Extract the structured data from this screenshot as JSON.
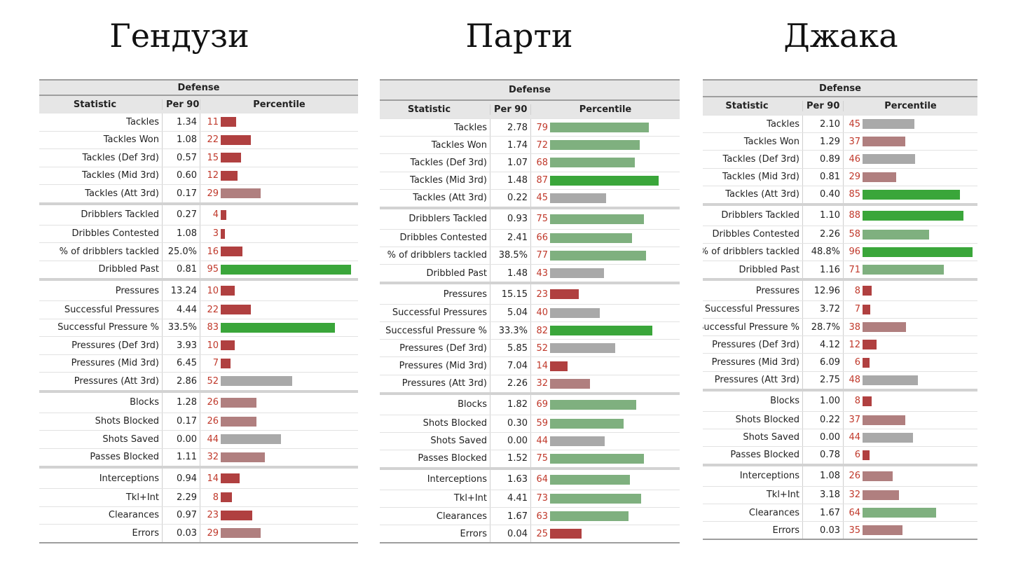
{
  "players": [
    {
      "title": "Гендузи",
      "section_label": "Defense",
      "columns": [
        "Statistic",
        "Per 90",
        "Percentile"
      ],
      "groups": [
        [
          [
            "Tackles",
            "1.34",
            11
          ],
          [
            "Tackles Won",
            "1.08",
            22
          ],
          [
            "Tackles (Def 3rd)",
            "0.57",
            15
          ],
          [
            "Tackles (Mid 3rd)",
            "0.60",
            12
          ],
          [
            "Tackles (Att 3rd)",
            "0.17",
            29
          ]
        ],
        [
          [
            "Dribblers Tackled",
            "0.27",
            4
          ],
          [
            "Dribbles Contested",
            "1.08",
            3
          ],
          [
            "% of dribblers tackled",
            "25.0%",
            16
          ],
          [
            "Dribbled Past",
            "0.81",
            95
          ]
        ],
        [
          [
            "Pressures",
            "13.24",
            10
          ],
          [
            "Successful Pressures",
            "4.44",
            22
          ],
          [
            "Successful Pressure %",
            "33.5%",
            83
          ],
          [
            "Pressures (Def 3rd)",
            "3.93",
            10
          ],
          [
            "Pressures (Mid 3rd)",
            "6.45",
            7
          ],
          [
            "Pressures (Att 3rd)",
            "2.86",
            52
          ]
        ],
        [
          [
            "Blocks",
            "1.28",
            26
          ],
          [
            "Shots Blocked",
            "0.17",
            26
          ],
          [
            "Shots Saved",
            "0.00",
            44
          ],
          [
            "Passes Blocked",
            "1.11",
            32
          ]
        ],
        [
          [
            "Interceptions",
            "0.94",
            14
          ],
          [
            "Tkl+Int",
            "2.29",
            8
          ],
          [
            "Clearances",
            "0.97",
            23
          ],
          [
            "Errors",
            "0.03",
            29
          ]
        ]
      ]
    },
    {
      "title": "Парти",
      "section_label": "Defense",
      "columns": [
        "Statistic",
        "Per 90",
        "Percentile"
      ],
      "groups": [
        [
          [
            "Tackles",
            "2.78",
            79
          ],
          [
            "Tackles Won",
            "1.74",
            72
          ],
          [
            "Tackles (Def 3rd)",
            "1.07",
            68
          ],
          [
            "Tackles (Mid 3rd)",
            "1.48",
            87
          ],
          [
            "Tackles (Att 3rd)",
            "0.22",
            45
          ]
        ],
        [
          [
            "Dribblers Tackled",
            "0.93",
            75
          ],
          [
            "Dribbles Contested",
            "2.41",
            66
          ],
          [
            "% of dribblers tackled",
            "38.5%",
            77
          ],
          [
            "Dribbled Past",
            "1.48",
            43
          ]
        ],
        [
          [
            "Pressures",
            "15.15",
            23
          ],
          [
            "Successful Pressures",
            "5.04",
            40
          ],
          [
            "Successful Pressure %",
            "33.3%",
            82
          ],
          [
            "Pressures (Def 3rd)",
            "5.85",
            52
          ],
          [
            "Pressures (Mid 3rd)",
            "7.04",
            14
          ],
          [
            "Pressures (Att 3rd)",
            "2.26",
            32
          ]
        ],
        [
          [
            "Blocks",
            "1.82",
            69
          ],
          [
            "Shots Blocked",
            "0.30",
            59
          ],
          [
            "Shots Saved",
            "0.00",
            44
          ],
          [
            "Passes Blocked",
            "1.52",
            75
          ]
        ],
        [
          [
            "Interceptions",
            "1.63",
            64
          ],
          [
            "Tkl+Int",
            "4.41",
            73
          ],
          [
            "Clearances",
            "1.67",
            63
          ],
          [
            "Errors",
            "0.04",
            25
          ]
        ]
      ]
    },
    {
      "title": "Джака",
      "section_label": "Defense",
      "columns": [
        "Statistic",
        "Per 90",
        "Percentile"
      ],
      "groups": [
        [
          [
            "Tackles",
            "2.10",
            45
          ],
          [
            "Tackles Won",
            "1.29",
            37
          ],
          [
            "Tackles (Def 3rd)",
            "0.89",
            46
          ],
          [
            "Tackles (Mid 3rd)",
            "0.81",
            29
          ],
          [
            "Tackles (Att 3rd)",
            "0.40",
            85
          ]
        ],
        [
          [
            "Dribblers Tackled",
            "1.10",
            88
          ],
          [
            "Dribbles Contested",
            "2.26",
            58
          ],
          [
            "% of dribblers tackled",
            "48.8%",
            96
          ],
          [
            "Dribbled Past",
            "1.16",
            71
          ]
        ],
        [
          [
            "Pressures",
            "12.96",
            8
          ],
          [
            "Successful Pressures",
            "3.72",
            7
          ],
          [
            "Successful Pressure %",
            "28.7%",
            38
          ],
          [
            "Pressures (Def 3rd)",
            "4.12",
            12
          ],
          [
            "Pressures (Mid 3rd)",
            "6.09",
            6
          ],
          [
            "Pressures (Att 3rd)",
            "2.75",
            48
          ]
        ],
        [
          [
            "Blocks",
            "1.00",
            8
          ],
          [
            "Shots Blocked",
            "0.22",
            37
          ],
          [
            "Shots Saved",
            "0.00",
            44
          ],
          [
            "Passes Blocked",
            "0.78",
            6
          ]
        ],
        [
          [
            "Interceptions",
            "1.08",
            26
          ],
          [
            "Tkl+Int",
            "3.18",
            32
          ],
          [
            "Clearances",
            "1.67",
            64
          ],
          [
            "Errors",
            "0.03",
            35
          ]
        ]
      ]
    }
  ],
  "colors": {
    "high": "#3aa63a",
    "mid_high": "#7fb07f",
    "mid": "#a9a9a9",
    "mid_low": "#b07f7f",
    "low": "#b04040",
    "percentile_text": "#c0392b"
  },
  "chart_data": {
    "type": "bar",
    "percentile_range": [
      0,
      100
    ],
    "series": [
      {
        "name": "Гендузи",
        "values": [
          11,
          22,
          15,
          12,
          29,
          4,
          3,
          16,
          95,
          10,
          22,
          83,
          10,
          7,
          52,
          26,
          26,
          44,
          32,
          14,
          8,
          23,
          29
        ]
      },
      {
        "name": "Парти",
        "values": [
          79,
          72,
          68,
          87,
          45,
          75,
          66,
          77,
          43,
          23,
          40,
          82,
          52,
          14,
          32,
          69,
          59,
          44,
          75,
          64,
          73,
          63,
          25
        ]
      },
      {
        "name": "Джака",
        "values": [
          45,
          37,
          46,
          29,
          85,
          88,
          58,
          96,
          71,
          8,
          7,
          38,
          12,
          6,
          48,
          8,
          37,
          44,
          6,
          26,
          32,
          64,
          35
        ]
      }
    ]
  }
}
